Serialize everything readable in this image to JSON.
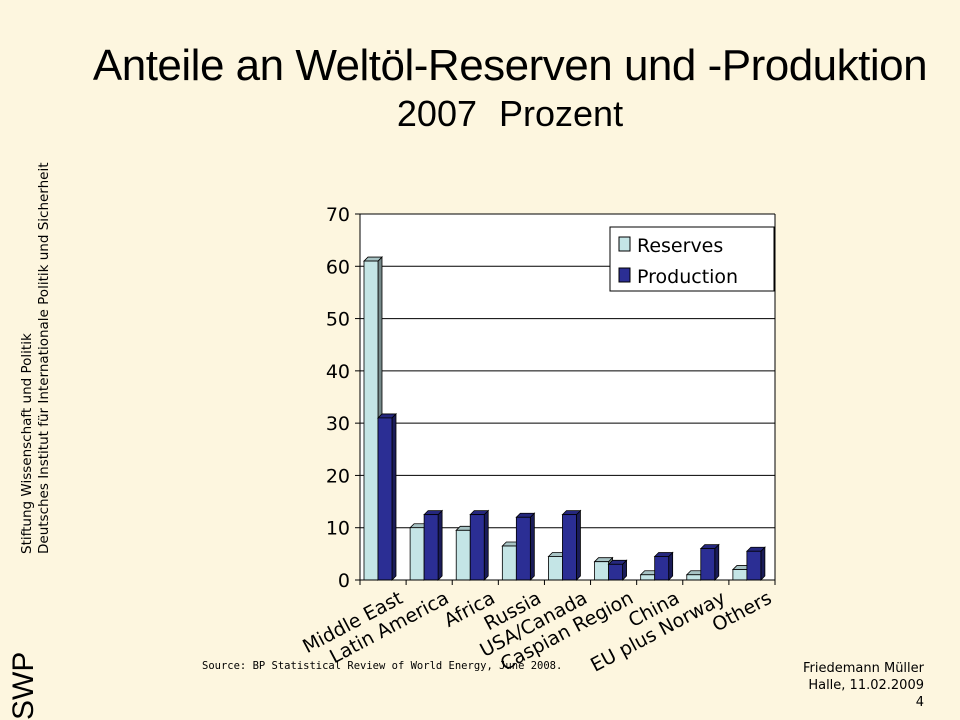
{
  "slide": {
    "title": "Anteile an Weltöl-Reserven und -Produktion",
    "subtitle_year": "2007",
    "subtitle_unit": "Prozent",
    "logo": "SWP",
    "org_line1": "Stiftung Wissenschaft und Politik",
    "org_line2": "Deutsches Institut für Internationale Politik und Sicherheit",
    "source": "Source: BP Statistical Review of World Energy, June 2008.",
    "author": "Friedemann Müller",
    "place_date": "Halle, 11.02.2009",
    "page": "4"
  },
  "colors": {
    "background": "#fdf6df",
    "reserves": "#c4e5e6",
    "production": "#2b2e94"
  },
  "chart_data": {
    "type": "bar",
    "categories": [
      "Middle East",
      "Latin America",
      "Africa",
      "Russia",
      "USA/Canada",
      "Caspian Region",
      "China",
      "EU plus Norway",
      "Others"
    ],
    "series": [
      {
        "name": "Reserves",
        "values": [
          61,
          10,
          9.5,
          6.5,
          4.5,
          3.5,
          1,
          1,
          2
        ]
      },
      {
        "name": "Production",
        "values": [
          31,
          12.5,
          12.5,
          12,
          12.5,
          3,
          4.5,
          6,
          5.5
        ]
      }
    ],
    "ylim": [
      0,
      70
    ],
    "yticks": [
      0,
      10,
      20,
      30,
      40,
      50,
      60,
      70
    ],
    "grid": true,
    "legend_position": "top-right",
    "style": "3d-clustered-bar"
  }
}
